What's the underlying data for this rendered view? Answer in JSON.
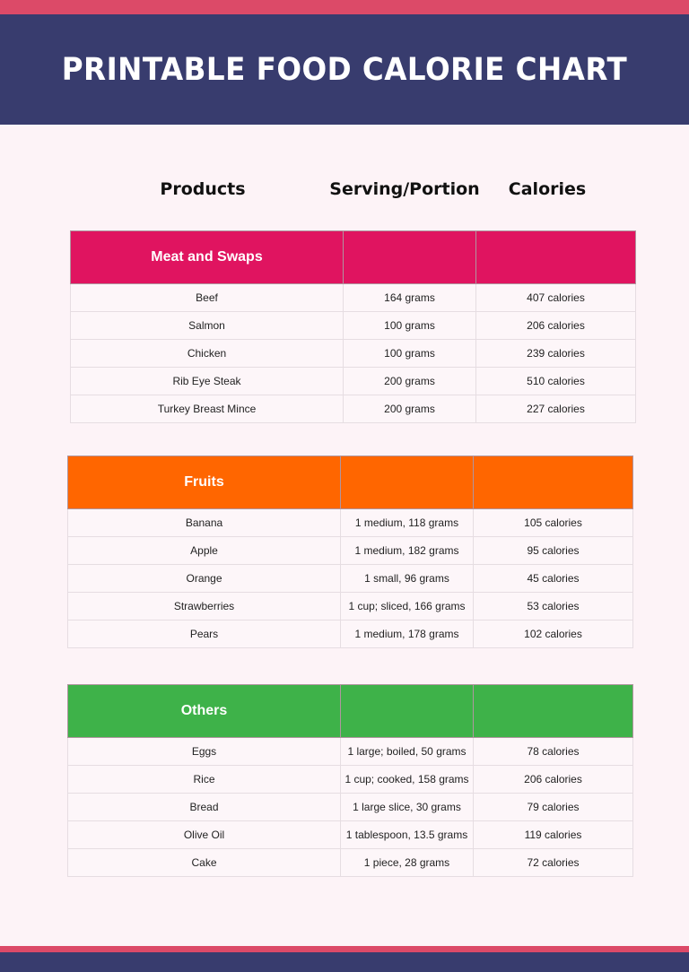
{
  "title": "PRINTABLE FOOD CALORIE CHART",
  "columns": [
    "Products",
    "Serving/Portion",
    "Calories"
  ],
  "colors": {
    "banner": "#383c6e",
    "stripe": "#dc4a68",
    "meat": "#e01460",
    "fruits": "#ff6600",
    "others": "#3eb249"
  },
  "sections": [
    {
      "name": "Meat and Swaps",
      "rows": [
        [
          "Beef",
          "164 grams",
          "407 calories"
        ],
        [
          "Salmon",
          "100 grams",
          "206 calories"
        ],
        [
          "Chicken",
          "100 grams",
          "239 calories"
        ],
        [
          "Rib Eye Steak",
          "200 grams",
          "510 calories"
        ],
        [
          "Turkey Breast Mince",
          "200 grams",
          "227 calories"
        ]
      ]
    },
    {
      "name": "Fruits",
      "rows": [
        [
          "Banana",
          "1 medium, 118 grams",
          "105 calories"
        ],
        [
          "Apple",
          "1 medium, 182 grams",
          "95 calories"
        ],
        [
          "Orange",
          "1 small, 96 grams",
          "45 calories"
        ],
        [
          "Strawberries",
          "1 cup; sliced, 166 grams",
          "53 calories"
        ],
        [
          "Pears",
          "1 medium, 178 grams",
          "102 calories"
        ]
      ]
    },
    {
      "name": "Others",
      "rows": [
        [
          "Eggs",
          "1 large; boiled, 50 grams",
          "78 calories"
        ],
        [
          "Rice",
          "1 cup; cooked, 158 grams",
          "206 calories"
        ],
        [
          "Bread",
          "1 large slice, 30 grams",
          "79 calories"
        ],
        [
          "Olive Oil",
          "1 tablespoon, 13.5 grams",
          "119 calories"
        ],
        [
          "Cake",
          "1 piece, 28 grams",
          "72 calories"
        ]
      ]
    }
  ]
}
